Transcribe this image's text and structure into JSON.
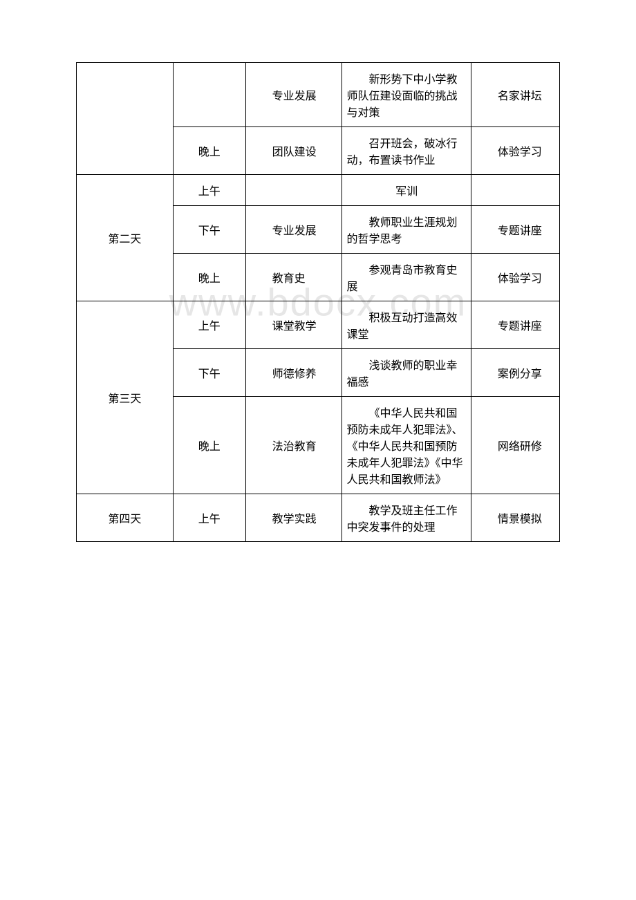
{
  "watermark": "www.bdocx.com",
  "table": {
    "columns": {
      "widths": [
        120,
        90,
        120,
        160,
        110
      ],
      "alignment": [
        "center",
        "center",
        "indent",
        "indent",
        "indent"
      ]
    },
    "border_color": "#000000",
    "background_color": "#ffffff",
    "text_color": "#000000",
    "font_size": 16,
    "font_family": "SimSun",
    "rows": [
      {
        "day": "",
        "day_rowspan": 2,
        "cells": [
          {
            "time": "",
            "module": "专业发展",
            "content": "新形势下中小学教师队伍建设面临的挑战与对策",
            "method": "名家讲坛"
          },
          {
            "time": "晚上",
            "module": "团队建设",
            "content": "召开班会，破冰行动，布置读书作业",
            "method": "体验学习"
          }
        ]
      },
      {
        "day": "第二天",
        "day_rowspan": 3,
        "cells": [
          {
            "time": "上午",
            "module": "",
            "content": "军训",
            "content_center": true,
            "method": ""
          },
          {
            "time": "下午",
            "module": "专业发展",
            "content": "教师职业生涯规划的哲学思考",
            "method": "专题讲座"
          },
          {
            "time": "晚上",
            "module": "教育史",
            "content": "参观青岛市教育史展",
            "method": "体验学习"
          }
        ]
      },
      {
        "day": "第三天",
        "day_rowspan": 3,
        "cells": [
          {
            "time": "上午",
            "module": "课堂教学",
            "content": "积极互动打造高效课堂",
            "method": "专题讲座"
          },
          {
            "time": "下午",
            "module": "师德修养",
            "content": "浅谈教师的职业幸福感",
            "method": "案例分享"
          },
          {
            "time": "晚上",
            "module": "法治教育",
            "content": "《中华人民共和国预防未成年人犯罪法》、《中华人民共和国预防未成年人犯罪法》《中华人民共和国教师法》",
            "method": "网络研修"
          }
        ]
      },
      {
        "day": "第四天",
        "day_rowspan": 1,
        "cells": [
          {
            "time": "上午",
            "module": "教学实践",
            "content": "教学及班主任工作中突发事件的处理",
            "method": "情景模拟"
          }
        ]
      }
    ]
  }
}
